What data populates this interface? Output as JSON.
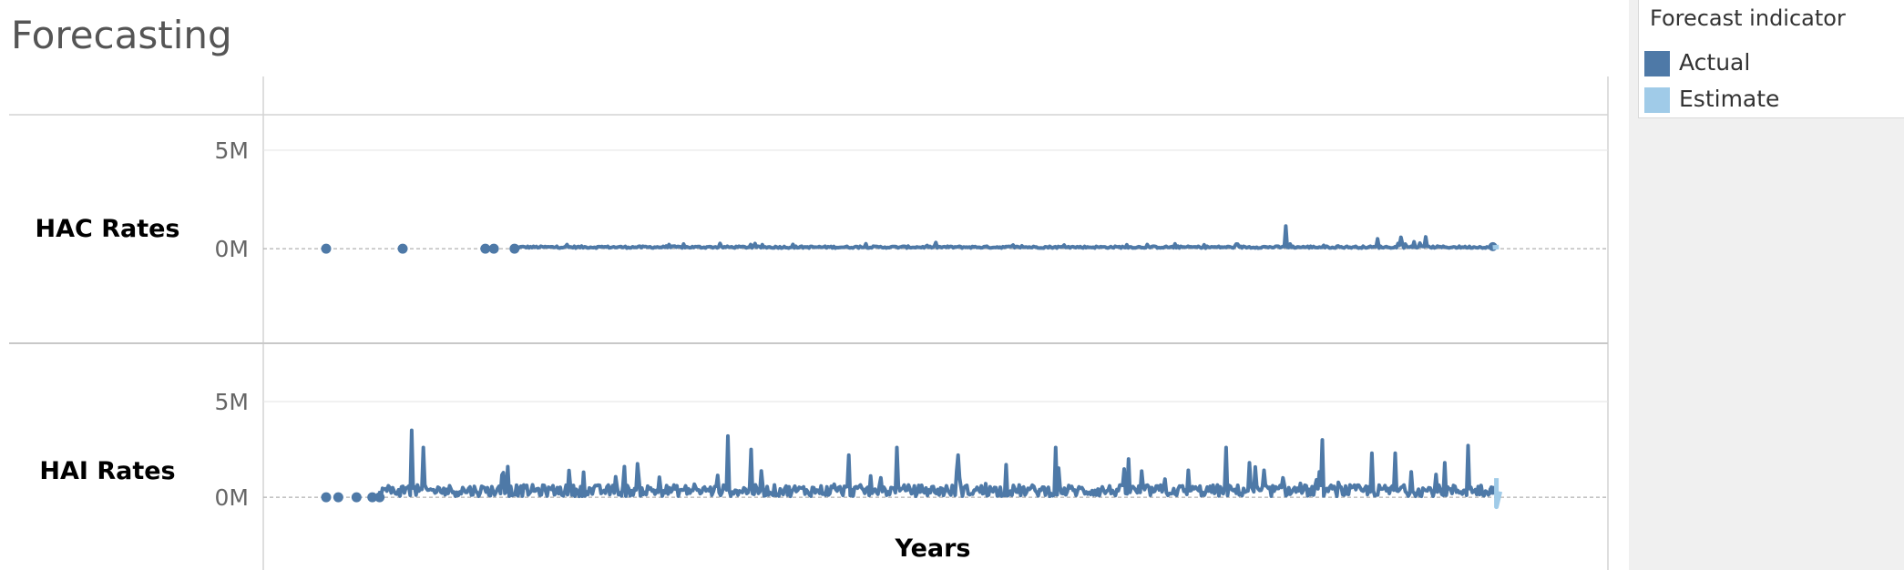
{
  "title": "Forecasting",
  "legend": {
    "title": "Forecast indicator",
    "items": [
      {
        "label": "Actual",
        "color": "#4e79a7"
      },
      {
        "label": "Estimate",
        "color": "#a0cbe8"
      }
    ]
  },
  "chart_data": {
    "type": "line",
    "xlabel": "Years",
    "ylabel": "",
    "grid": true,
    "legend_position": "top-right",
    "panels": [
      {
        "name": "HAC Rates",
        "yticks": [
          "5M",
          "0M"
        ],
        "tick_values": [
          5000000,
          0
        ],
        "ylim": [
          -4800000,
          6800000
        ],
        "x_range": [
          0,
          1000
        ],
        "isolated_points": [
          [
            0,
            0
          ],
          [
            63,
            0
          ],
          [
            131,
            0
          ],
          [
            138,
            0
          ],
          [
            155,
            0
          ]
        ],
        "actual_x_range": [
          155,
          960
        ],
        "baseline": 80000,
        "noise": 50000,
        "spikes": [
          [
            790,
            1150000
          ],
          [
            865,
            500000
          ],
          [
            885,
            580000
          ],
          [
            905,
            600000
          ],
          [
            895,
            350000
          ]
        ],
        "estimate": [
          [
            960,
            60000
          ],
          [
            965,
            90000
          ]
        ]
      },
      {
        "name": "HAI Rates",
        "yticks": [
          "5M",
          "0M"
        ],
        "tick_values": [
          5000000,
          0
        ],
        "ylim": [
          -3800000,
          8000000
        ],
        "x_range": [
          0,
          1000
        ],
        "isolated_points": [
          [
            0,
            0
          ],
          [
            10,
            0
          ],
          [
            25,
            0
          ],
          [
            38,
            0
          ],
          [
            44,
            0
          ]
        ],
        "actual_x_range": [
          44,
          960
        ],
        "baseline": 350000,
        "noise": 300000,
        "spikes": [
          [
            70,
            3500000
          ],
          [
            80,
            2600000
          ],
          [
            330,
            3200000
          ],
          [
            350,
            2500000
          ],
          [
            430,
            2200000
          ],
          [
            470,
            2600000
          ],
          [
            520,
            2200000
          ],
          [
            600,
            2600000
          ],
          [
            660,
            2000000
          ],
          [
            740,
            2600000
          ],
          [
            820,
            3000000
          ],
          [
            760,
            1800000
          ],
          [
            860,
            2300000
          ],
          [
            880,
            2300000
          ],
          [
            940,
            2700000
          ],
          [
            920,
            1800000
          ],
          [
            150,
            1600000
          ],
          [
            245,
            1600000
          ],
          [
            200,
            1400000
          ],
          [
            560,
            1700000
          ]
        ],
        "estimate": [
          [
            963,
            1000000
          ],
          [
            963,
            -500000
          ],
          [
            966,
            300000
          ]
        ]
      }
    ]
  }
}
